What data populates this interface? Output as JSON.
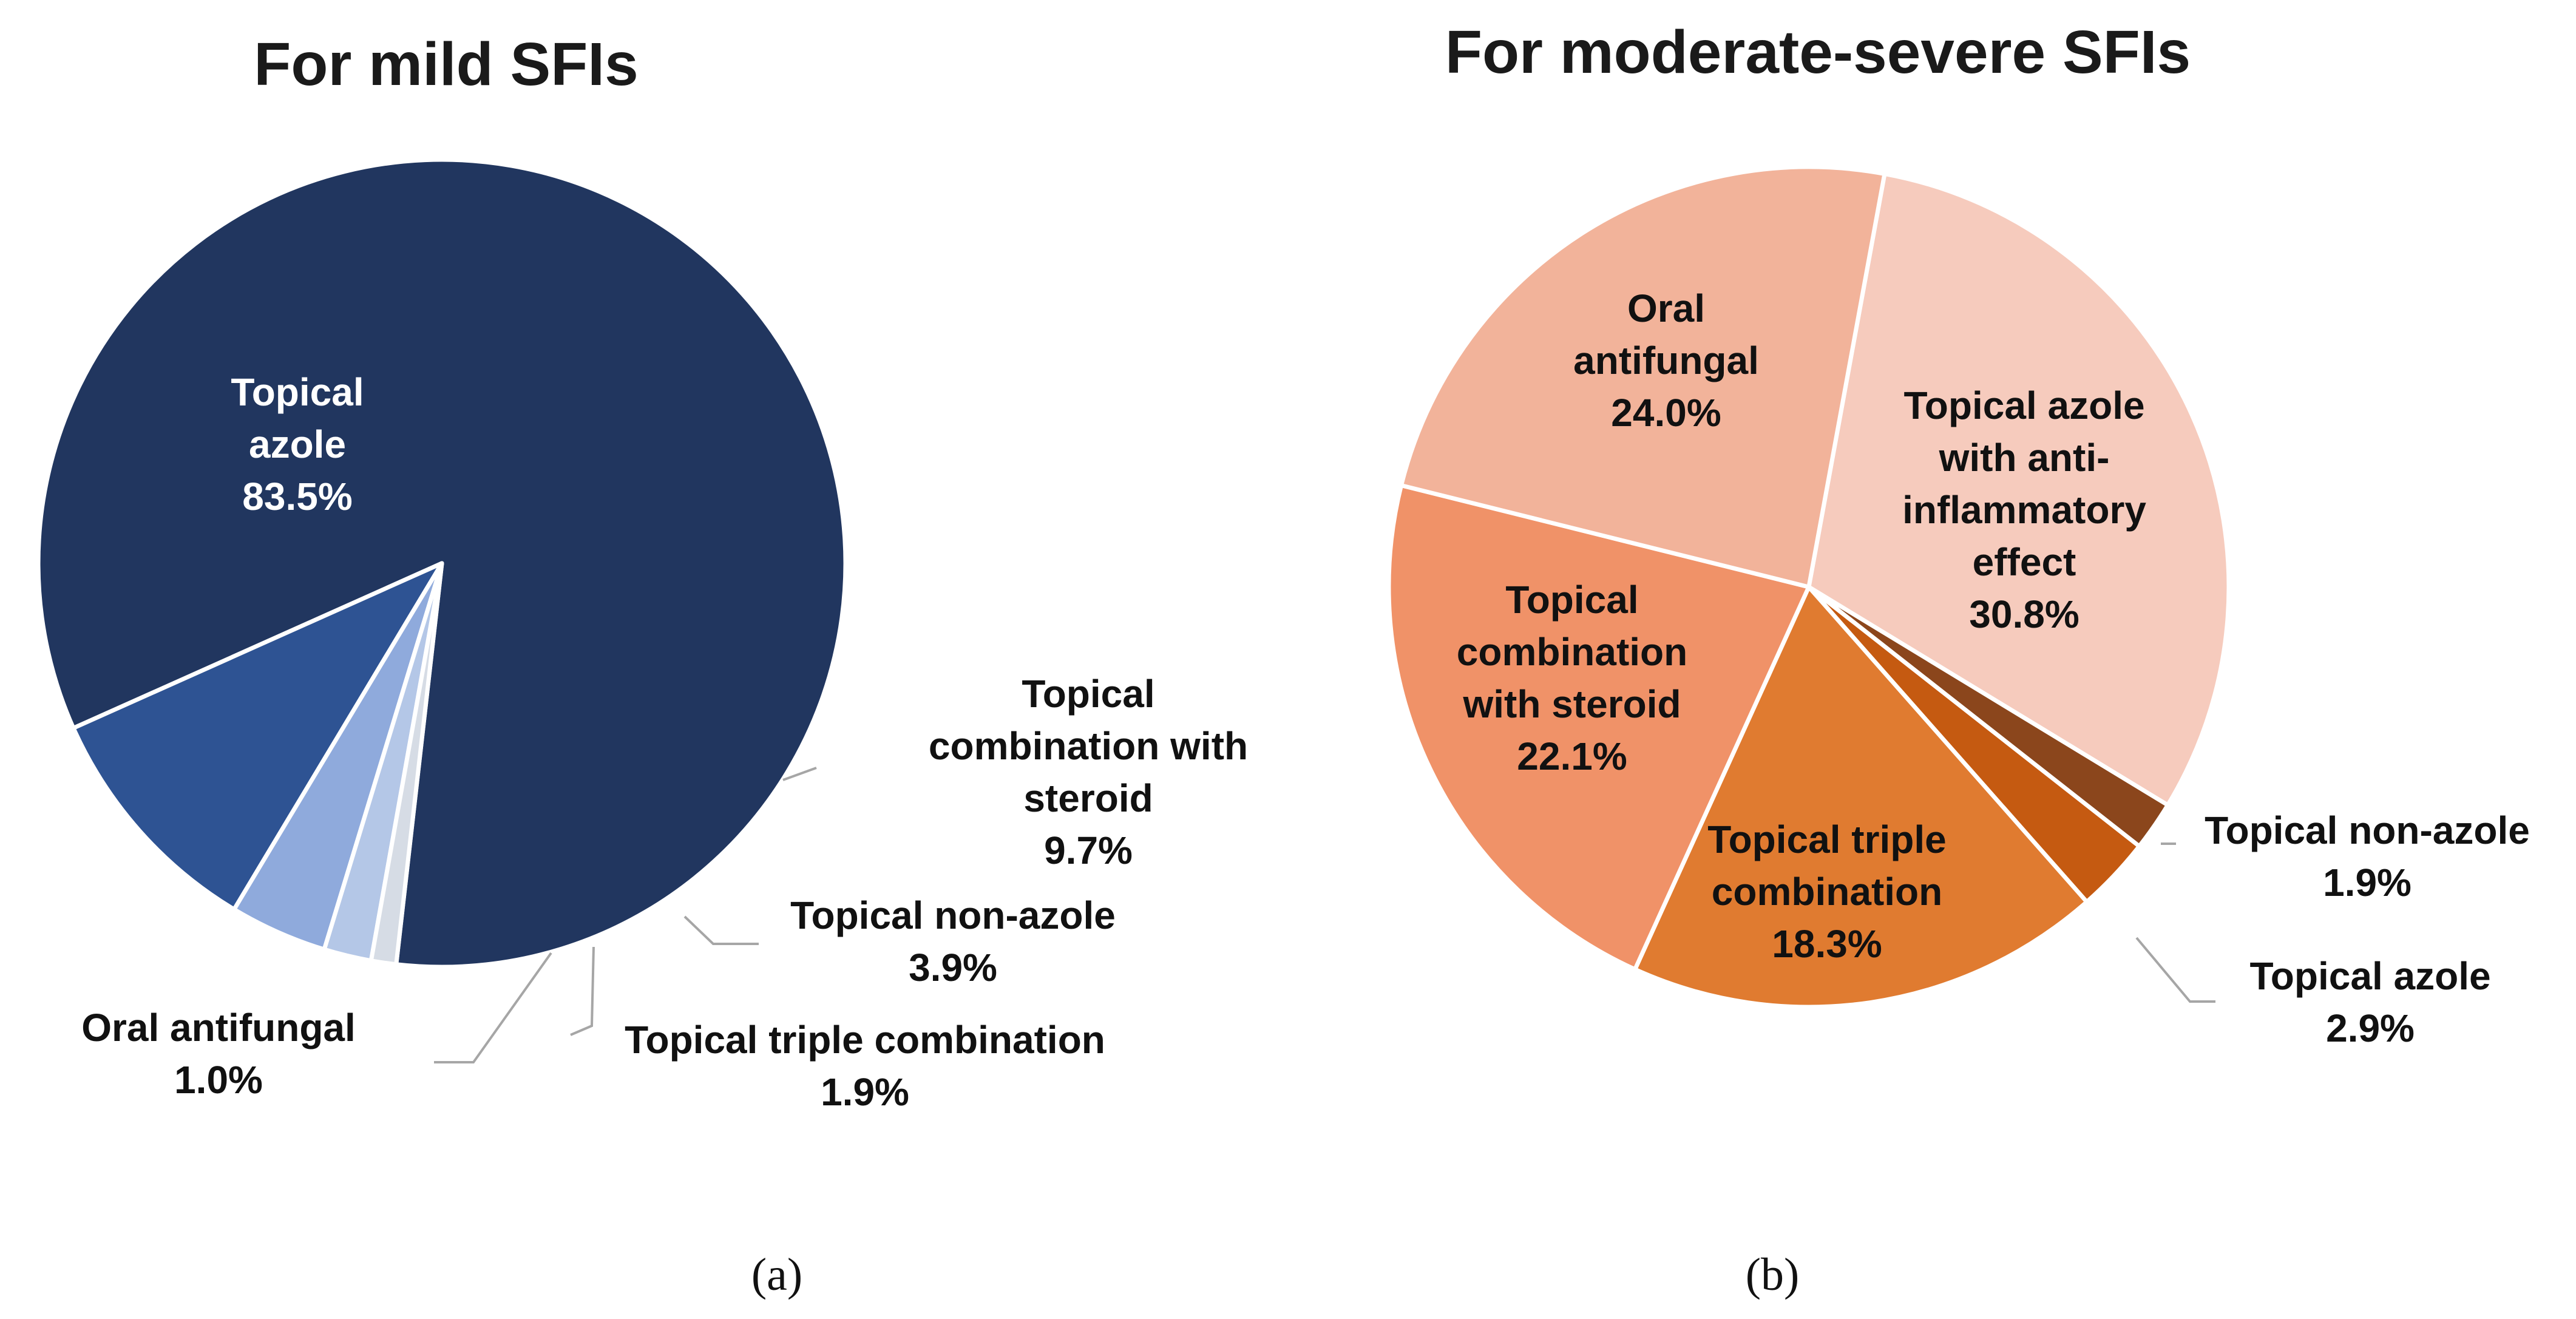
{
  "chart_data": [
    {
      "type": "pie",
      "title": "For mild SFIs",
      "caption": "(a)",
      "slices": [
        {
          "label_lines": [
            "Topical",
            "azole"
          ],
          "value_label": "83.5%",
          "value": 83.5,
          "color": "#21365f",
          "text_color": "#ffffff"
        },
        {
          "label_lines": [
            "Topical",
            "combination with",
            "steroid"
          ],
          "value_label": "9.7%",
          "value": 9.7,
          "color": "#2e5393",
          "text_color": "#111111"
        },
        {
          "label_lines": [
            "Topical non-azole"
          ],
          "value_label": "3.9%",
          "value": 3.9,
          "color": "#8faadc",
          "text_color": "#111111"
        },
        {
          "label_lines": [
            "Topical triple combination"
          ],
          "value_label": "1.9%",
          "value": 1.9,
          "color": "#b4c7e7",
          "text_color": "#111111"
        },
        {
          "label_lines": [
            "Oral antifungal"
          ],
          "value_label": "1.0%",
          "value": 1.0,
          "color": "#d6dce5",
          "text_color": "#111111"
        }
      ]
    },
    {
      "type": "pie",
      "title": "For moderate-severe SFIs",
      "caption": "(b)",
      "slices": [
        {
          "label_lines": [
            "Topical azole",
            "with anti-",
            "inflammatory",
            "effect"
          ],
          "value_label": "30.8%",
          "value": 30.8,
          "color": "#f6cbbd",
          "text_color": "#111111"
        },
        {
          "label_lines": [
            "Topical non-azole"
          ],
          "value_label": "1.9%",
          "value": 1.9,
          "color": "#8b461c",
          "text_color": "#111111"
        },
        {
          "label_lines": [
            "Topical azole"
          ],
          "value_label": "2.9%",
          "value": 2.9,
          "color": "#c55a11",
          "text_color": "#111111"
        },
        {
          "label_lines": [
            "Topical triple",
            "combination"
          ],
          "value_label": "18.3%",
          "value": 18.3,
          "color": "#e07b30",
          "text_color": "#111111"
        },
        {
          "label_lines": [
            "Topical",
            "combination",
            "with steroid"
          ],
          "value_label": "22.1%",
          "value": 22.1,
          "color": "#f09268",
          "text_color": "#111111"
        },
        {
          "label_lines": [
            "Oral",
            "antifungal"
          ],
          "value_label": "24.0%",
          "value": 24.0,
          "color": "#f2b39a",
          "text_color": "#111111"
        }
      ]
    }
  ]
}
